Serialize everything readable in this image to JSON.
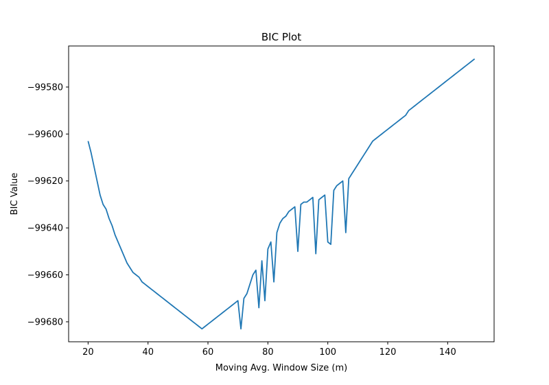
{
  "chart_data": {
    "type": "line",
    "title": "BIC Plot",
    "xlabel": "Moving Avg. Window Size (m)",
    "ylabel": "BIC Value",
    "xlim": [
      13.5,
      155.5
    ],
    "ylim": [
      -99688.5,
      -99562.5
    ],
    "xticks": [
      20,
      40,
      60,
      80,
      100,
      120,
      140
    ],
    "yticks": [
      -99680,
      -99660,
      -99640,
      -99620,
      -99600,
      -99580
    ],
    "ytick_labels": [
      "−99680",
      "−99660",
      "−99640",
      "−99620",
      "−99600",
      "−99580"
    ],
    "grid": false,
    "line_color": "#1f77b4",
    "series": [
      {
        "x": [
          20,
          21,
          22,
          23,
          24,
          25,
          26,
          27,
          28,
          29,
          30,
          31,
          32,
          33,
          34,
          35,
          36,
          37,
          38,
          39,
          40,
          41,
          42,
          43,
          44,
          45,
          46,
          47,
          48,
          49,
          50,
          51,
          52,
          53,
          54,
          55,
          56,
          57,
          58,
          59,
          60,
          61,
          62,
          63,
          64,
          65,
          66,
          67,
          68,
          69,
          70,
          71,
          72,
          73,
          74,
          75,
          76,
          77,
          78,
          79,
          80,
          81,
          82,
          83,
          84,
          85,
          86,
          87,
          88,
          89,
          90,
          91,
          92,
          93,
          94,
          95,
          96,
          97,
          98,
          99,
          100,
          101,
          102,
          103,
          104,
          105,
          106,
          107,
          108,
          109,
          110,
          111,
          112,
          113,
          114,
          115,
          116,
          117,
          118,
          119,
          120,
          121,
          122,
          123,
          124,
          125,
          126,
          127,
          128,
          129,
          130,
          131,
          132,
          133,
          134,
          135,
          136,
          137,
          138,
          139,
          140,
          141,
          142,
          143,
          144,
          145,
          146,
          147,
          148,
          149
        ],
        "values": [
          -99603,
          -99608,
          -99614,
          -99620,
          -99626,
          -99630,
          -99632,
          -99636,
          -99639,
          -99643,
          -99646,
          -99649,
          -99652,
          -99655,
          -99657,
          -99659,
          -99660,
          -99661,
          -99663,
          -99664,
          -99665,
          -99666,
          -99667,
          -99668,
          -99669,
          -99670,
          -99671,
          -99672,
          -99673,
          -99674,
          -99675,
          -99676,
          -99677,
          -99678,
          -99679,
          -99680,
          -99681,
          -99682,
          -99683,
          -99682,
          -99681,
          -99680,
          -99679,
          -99678,
          -99677,
          -99676,
          -99675,
          -99674,
          -99673,
          -99672,
          -99671,
          -99683,
          -99670,
          -99668,
          -99664,
          -99660,
          -99658,
          -99674,
          -99654,
          -99671,
          -99649,
          -99646,
          -99663,
          -99642,
          -99638,
          -99636,
          -99635,
          -99633,
          -99632,
          -99631,
          -99650,
          -99630,
          -99629,
          -99629,
          -99628,
          -99627,
          -99651,
          -99628,
          -99627,
          -99626,
          -99646,
          -99647,
          -99624,
          -99622,
          -99621,
          -99620,
          -99642,
          -99619,
          -99617,
          -99615,
          -99613,
          -99611,
          -99609,
          -99607,
          -99605,
          -99603,
          -99602,
          -99601,
          -99600,
          -99599,
          -99598,
          -99597,
          -99596,
          -99595,
          -99594,
          -99593,
          -99592,
          -99590,
          -99589,
          -99588,
          -99587,
          -99586,
          -99585,
          -99584,
          -99583,
          -99582,
          -99581,
          -99580,
          -99579,
          -99578,
          -99577,
          -99576,
          -99575,
          -99574,
          -99573,
          -99572,
          -99571,
          -99570,
          -99569,
          -99568
        ]
      }
    ]
  }
}
